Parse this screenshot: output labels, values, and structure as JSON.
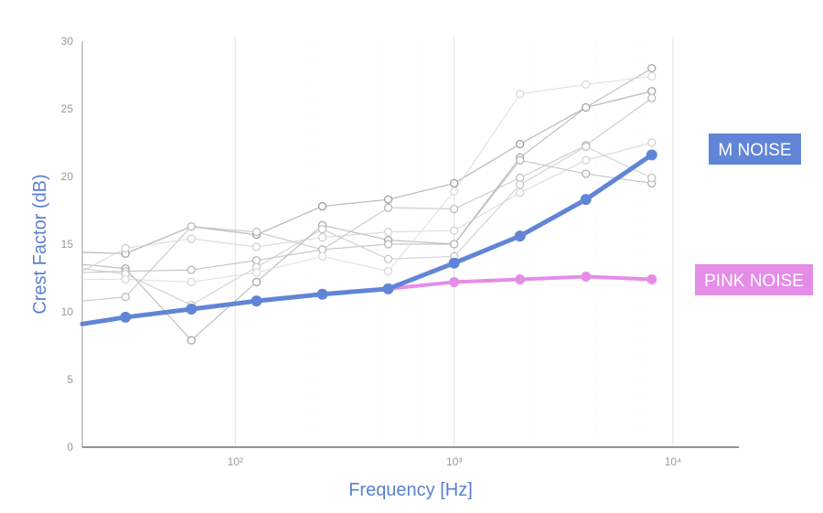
{
  "chart_data": {
    "type": "line",
    "xlabel": "Frequency [Hz]",
    "ylabel": "Crest Factor (dB)",
    "xscale": "log",
    "xlim": [
      20,
      20000
    ],
    "ylim": [
      0,
      30
    ],
    "grid": "vertical",
    "y_ticks": [
      "0",
      "5",
      "10",
      "15",
      "20",
      "25",
      "30"
    ],
    "x_ticks": [
      {
        "value": 100,
        "label": "10²"
      },
      {
        "value": 1000,
        "label": "10³"
      },
      {
        "value": 10000,
        "label": "10⁴"
      }
    ],
    "series": [
      {
        "name": "M NOISE",
        "color": "#6185d6",
        "x": [
          20,
          31.5,
          63,
          125,
          250,
          500,
          1000,
          2000,
          4000,
          8000
        ],
        "values": [
          9.1,
          9.6,
          10.2,
          10.8,
          11.3,
          11.7,
          13.6,
          15.6,
          18.3,
          21.6
        ]
      },
      {
        "name": "PINK NOISE",
        "color": "#e58ce8",
        "x": [
          500,
          1000,
          2000,
          4000,
          8000
        ],
        "values": [
          11.7,
          12.2,
          12.4,
          12.6,
          12.4
        ]
      }
    ],
    "background_series": [
      {
        "x": [
          20,
          31.5,
          63,
          125,
          250,
          500,
          1000,
          2000,
          4000,
          8000
        ],
        "values": [
          14.4,
          14.3,
          16.3,
          15.7,
          17.8,
          18.3,
          19.5,
          22.4,
          25.1,
          26.3
        ],
        "color": "#a0a0a0"
      },
      {
        "x": [
          20,
          31.5,
          63,
          125,
          250,
          500,
          1000,
          2000,
          4000,
          8000
        ],
        "values": [
          13.5,
          13.2,
          7.9,
          12.2,
          16.4,
          15.3,
          15.0,
          21.4,
          25.1,
          28.0
        ],
        "color": "#a8a8a8"
      },
      {
        "x": [
          20,
          31.5,
          63,
          125,
          250,
          500,
          1000,
          2000,
          4000,
          8000
        ],
        "values": [
          12.9,
          13.0,
          13.1,
          13.8,
          14.6,
          15.0,
          15.0,
          21.2,
          20.2,
          19.5
        ],
        "color": "#b4b4b4"
      },
      {
        "x": [
          20,
          31.5,
          63,
          125,
          250,
          500,
          1000,
          2000,
          4000,
          8000
        ],
        "values": [
          10.8,
          11.1,
          16.3,
          15.9,
          14.6,
          17.7,
          17.6,
          19.9,
          22.3,
          25.8
        ],
        "color": "#bcbcbc"
      },
      {
        "x": [
          20,
          31.5,
          63,
          125,
          250,
          500,
          1000,
          2000,
          4000,
          8000
        ],
        "values": [
          13.2,
          12.8,
          10.5,
          13.3,
          16.1,
          13.9,
          14.1,
          19.4,
          22.2,
          19.9
        ],
        "color": "#c6c6c6"
      },
      {
        "x": [
          20,
          31.5,
          63,
          125,
          250,
          500,
          1000,
          2000,
          4000,
          8000
        ],
        "values": [
          13.0,
          14.7,
          15.4,
          14.8,
          15.5,
          15.9,
          16.0,
          18.8,
          21.2,
          22.5
        ],
        "color": "#d2d2d2"
      },
      {
        "x": [
          20,
          31.5,
          63,
          125,
          250,
          500,
          1000,
          2000,
          4000,
          8000
        ],
        "values": [
          12.4,
          12.4,
          12.2,
          12.9,
          14.1,
          13.0,
          18.9,
          26.1,
          26.8,
          27.4
        ],
        "color": "#dadada"
      }
    ]
  }
}
